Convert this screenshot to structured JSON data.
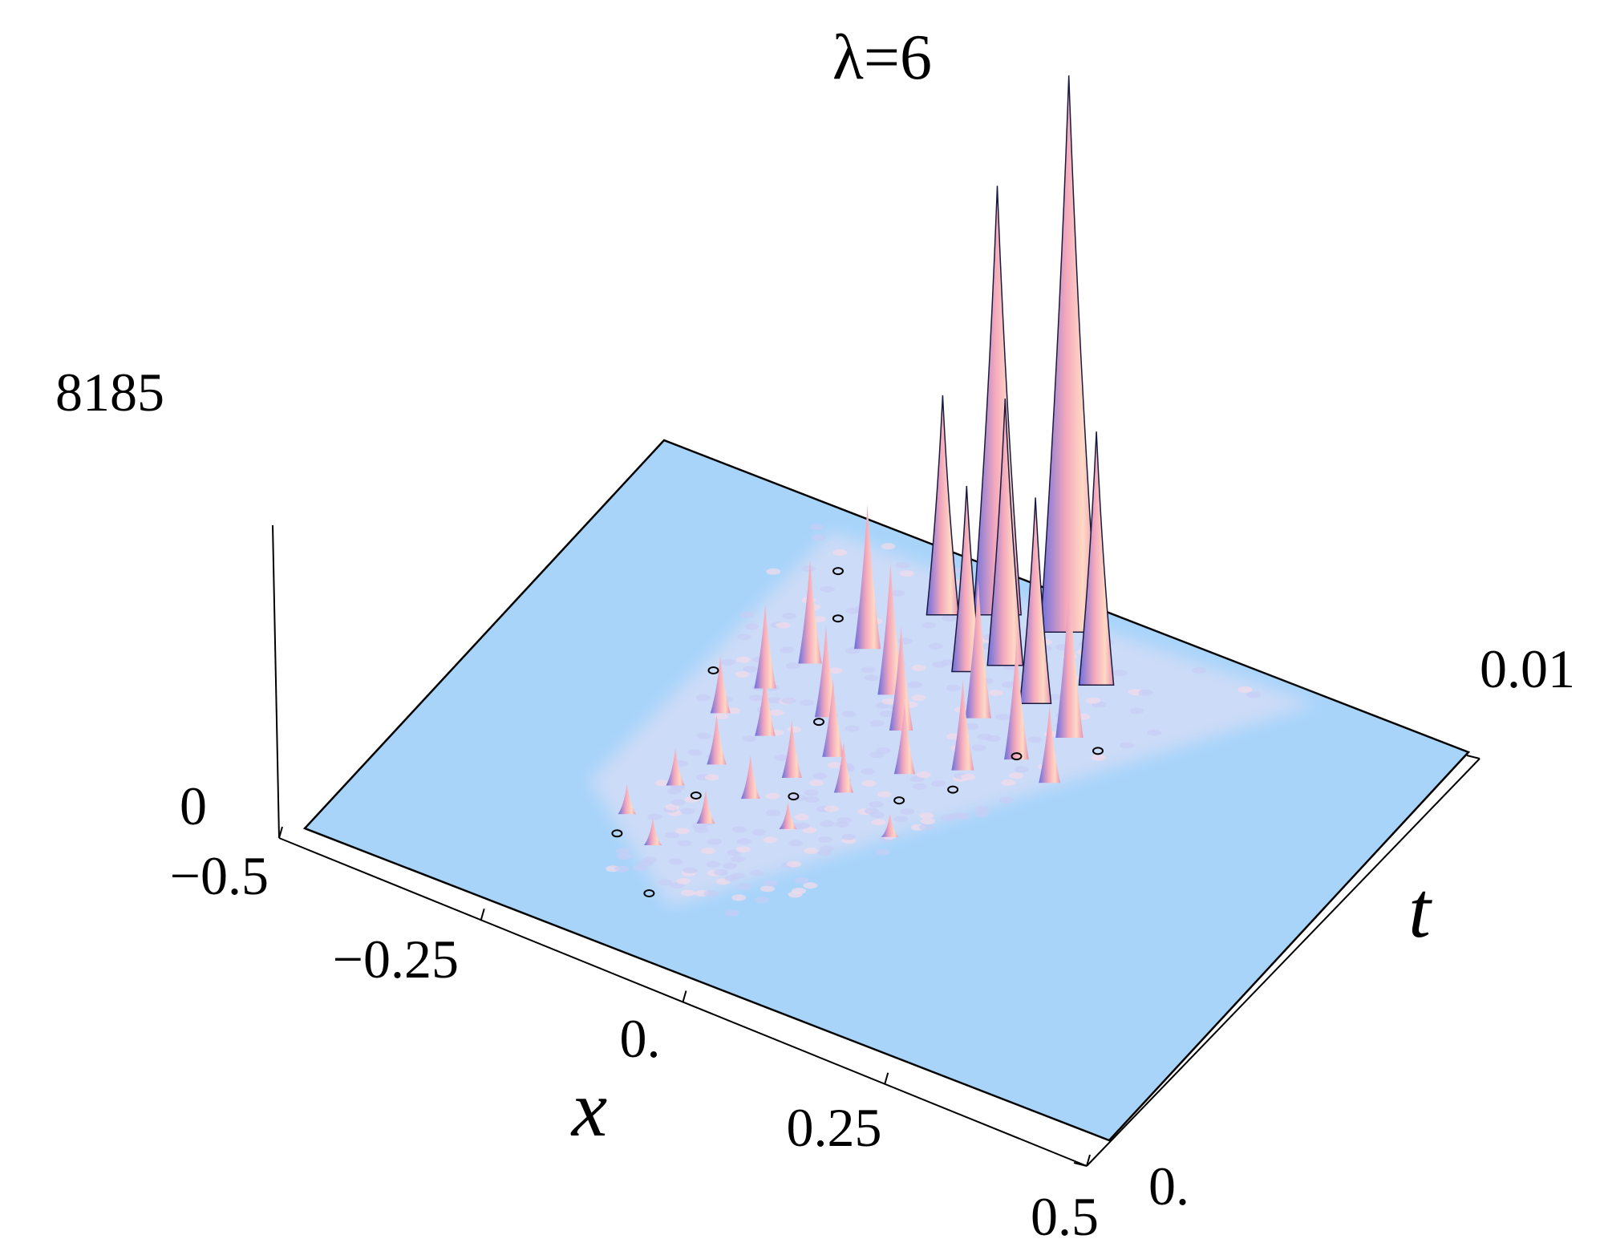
{
  "chart_data": {
    "type": "surface3d",
    "title": "λ=6",
    "xlabel": "x",
    "ylabel": "t",
    "zlabel": "",
    "xlim": [
      -0.5,
      0.5
    ],
    "tlim": [
      0,
      0.01
    ],
    "zlim": [
      0,
      8185
    ],
    "x_ticks": [
      "−0.5",
      "−0.25",
      "0.",
      "0.25",
      "0.5"
    ],
    "t_ticks": [
      "0.",
      "0.01"
    ],
    "z_ticks": [
      "8185",
      "0"
    ],
    "surface_color": "#a8d4fa",
    "peak_color": "#f6a6b6",
    "shade_color": "#7f86ee",
    "peaks": [
      {
        "x": 0.03,
        "t": 0.0094,
        "z": 8185
      },
      {
        "x": -0.05,
        "t": 0.0092,
        "z": 6300
      },
      {
        "x": 0.1,
        "t": 0.0086,
        "z": 3700
      },
      {
        "x": 0.0,
        "t": 0.0083,
        "z": 3900
      },
      {
        "x": -0.1,
        "t": 0.0088,
        "z": 3200
      },
      {
        "x": 0.06,
        "t": 0.0078,
        "z": 3000
      },
      {
        "x": -0.03,
        "t": 0.0079,
        "z": 2700
      },
      {
        "x": 0.12,
        "t": 0.0074,
        "z": 2300
      },
      {
        "x": -0.14,
        "t": 0.0076,
        "z": 2100
      },
      {
        "x": 0.02,
        "t": 0.0071,
        "z": 2000
      },
      {
        "x": -0.08,
        "t": 0.0069,
        "z": 1900
      },
      {
        "x": 0.09,
        "t": 0.0066,
        "z": 1700
      },
      {
        "x": -0.18,
        "t": 0.0069,
        "z": 1500
      },
      {
        "x": -0.04,
        "t": 0.0063,
        "z": 1500
      },
      {
        "x": 0.05,
        "t": 0.006,
        "z": 1300
      },
      {
        "x": -0.12,
        "t": 0.006,
        "z": 1300
      },
      {
        "x": -0.2,
        "t": 0.0061,
        "z": 1200
      },
      {
        "x": 0.14,
        "t": 0.0064,
        "z": 1100
      },
      {
        "x": -0.08,
        "t": 0.0053,
        "z": 1100
      },
      {
        "x": 0.0,
        "t": 0.0055,
        "z": 1000
      },
      {
        "x": -0.16,
        "t": 0.0052,
        "z": 900
      },
      {
        "x": -0.1,
        "t": 0.0046,
        "z": 800
      },
      {
        "x": -0.22,
        "t": 0.0053,
        "z": 800
      },
      {
        "x": -0.04,
        "t": 0.0047,
        "z": 700
      },
      {
        "x": -0.18,
        "t": 0.0043,
        "z": 700
      },
      {
        "x": -0.12,
        "t": 0.0039,
        "z": 600
      },
      {
        "x": -0.2,
        "t": 0.0036,
        "z": 500
      },
      {
        "x": -0.14,
        "t": 0.0031,
        "z": 450
      },
      {
        "x": -0.22,
        "t": 0.0027,
        "z": 400
      },
      {
        "x": -0.17,
        "t": 0.0023,
        "z": 350
      },
      {
        "x": -0.06,
        "t": 0.0036,
        "z": 350
      },
      {
        "x": 0.04,
        "t": 0.0042,
        "z": 300
      }
    ]
  }
}
